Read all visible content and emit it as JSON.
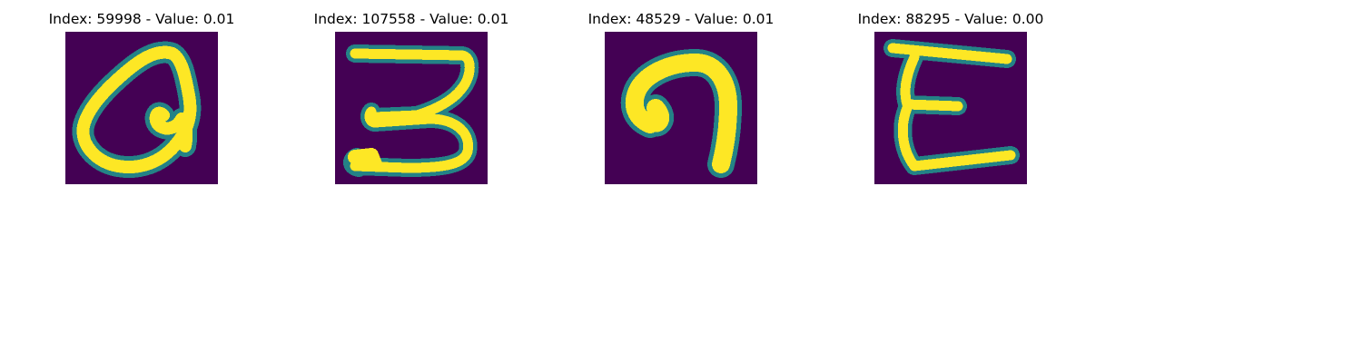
{
  "figure": {
    "panels": [
      {
        "title": "Index: 59998 - Value: 0.01",
        "glyph": "handwritten-a-like",
        "colors": {
          "background": "#440154",
          "mid": "#21918c",
          "ink": "#fde725"
        }
      },
      {
        "title": "Index: 107558 - Value: 0.01",
        "glyph": "handwritten-3",
        "colors": {
          "background": "#440154",
          "mid": "#21918c",
          "ink": "#fde725"
        }
      },
      {
        "title": "Index: 48529 - Value: 0.01",
        "glyph": "handwritten-n-hook",
        "colors": {
          "background": "#440154",
          "mid": "#21918c",
          "ink": "#fde725"
        }
      },
      {
        "title": "Index: 88295 - Value: 0.00",
        "glyph": "handwritten-epsilon",
        "colors": {
          "background": "#440154",
          "mid": "#21918c",
          "ink": "#fde725"
        }
      }
    ]
  }
}
